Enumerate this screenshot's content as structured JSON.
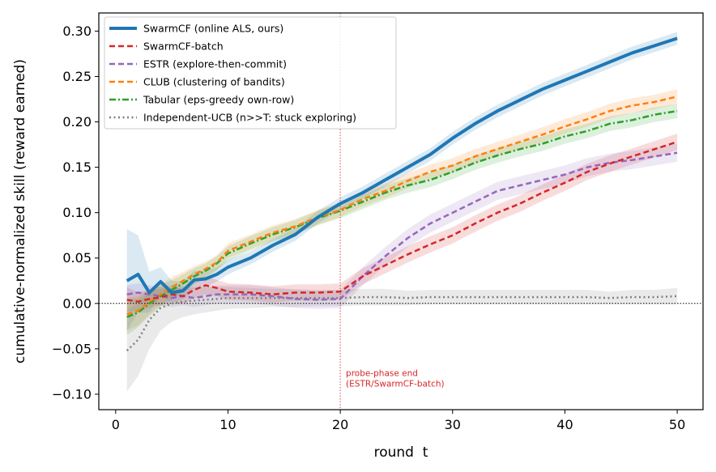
{
  "chart_data": {
    "type": "line",
    "xlabel": "round  t",
    "ylabel": "cumulative-normalized skill (reward earned)",
    "xlim": [
      -1.5,
      52.3
    ],
    "ylim": [
      -0.117,
      0.32
    ],
    "xticks": [
      0,
      10,
      20,
      30,
      40,
      50
    ],
    "yticks": [
      -0.1,
      -0.05,
      0.0,
      0.05,
      0.1,
      0.15,
      0.2,
      0.25,
      0.3
    ],
    "ytick_labels": [
      "−0.10",
      "−0.05",
      "0.00",
      "0.05",
      "0.10",
      "0.15",
      "0.20",
      "0.25",
      "0.30"
    ],
    "zero_line": 0,
    "vline": {
      "x": 20,
      "color": "#d62728"
    },
    "annotation": {
      "lines": [
        "probe-phase end",
        "(ESTR/SwarmCF-batch)"
      ],
      "x": 20.5,
      "y": -0.08,
      "color": "#d62728"
    },
    "legend_position": "upper-left",
    "series": [
      {
        "name": "SwarmCF (online ALS, ours)",
        "color": "#1f77b4",
        "dash": "solid",
        "width": 4,
        "x": [
          1,
          2,
          3,
          4,
          5,
          6,
          7,
          8,
          9,
          10,
          12,
          14,
          16,
          18,
          20,
          22,
          24,
          26,
          28,
          30,
          32,
          34,
          36,
          38,
          40,
          42,
          44,
          46,
          48,
          50
        ],
        "y": [
          0.025,
          0.032,
          0.012,
          0.024,
          0.012,
          0.014,
          0.026,
          0.027,
          0.032,
          0.04,
          0.05,
          0.064,
          0.076,
          0.095,
          0.11,
          0.122,
          0.136,
          0.15,
          0.164,
          0.182,
          0.198,
          0.212,
          0.224,
          0.236,
          0.246,
          0.256,
          0.266,
          0.276,
          0.284,
          0.292
        ],
        "lo": [
          -0.03,
          -0.01,
          -0.01,
          0.008,
          0.0,
          0.005,
          0.016,
          0.018,
          0.024,
          0.032,
          0.043,
          0.057,
          0.069,
          0.088,
          0.103,
          0.115,
          0.129,
          0.143,
          0.157,
          0.175,
          0.191,
          0.205,
          0.217,
          0.229,
          0.239,
          0.249,
          0.259,
          0.269,
          0.277,
          0.285
        ],
        "hi": [
          0.082,
          0.075,
          0.035,
          0.04,
          0.025,
          0.024,
          0.036,
          0.036,
          0.04,
          0.048,
          0.057,
          0.071,
          0.083,
          0.102,
          0.117,
          0.129,
          0.143,
          0.157,
          0.171,
          0.189,
          0.205,
          0.219,
          0.231,
          0.243,
          0.253,
          0.263,
          0.273,
          0.283,
          0.291,
          0.299
        ]
      },
      {
        "name": "SwarmCF-batch",
        "color": "#d62728",
        "dash": "dashed",
        "width": 2.5,
        "x": [
          1,
          2,
          3,
          4,
          5,
          6,
          7,
          8,
          9,
          10,
          12,
          14,
          16,
          18,
          20,
          22,
          24,
          26,
          28,
          30,
          32,
          34,
          36,
          38,
          40,
          42,
          44,
          46,
          48,
          50
        ],
        "y": [
          0.004,
          0.002,
          0.005,
          0.007,
          0.01,
          0.008,
          0.015,
          0.02,
          0.017,
          0.013,
          0.012,
          0.01,
          0.012,
          0.012,
          0.013,
          0.03,
          0.042,
          0.054,
          0.065,
          0.075,
          0.088,
          0.1,
          0.11,
          0.122,
          0.133,
          0.145,
          0.154,
          0.162,
          0.17,
          0.178
        ],
        "lo": [
          -0.01,
          -0.008,
          -0.005,
          -0.002,
          0.002,
          0.0,
          0.006,
          0.01,
          0.008,
          0.004,
          0.003,
          0.001,
          0.003,
          0.003,
          0.004,
          0.021,
          0.033,
          0.045,
          0.056,
          0.066,
          0.079,
          0.091,
          0.101,
          0.113,
          0.124,
          0.136,
          0.145,
          0.153,
          0.161,
          0.169
        ],
        "hi": [
          0.018,
          0.012,
          0.015,
          0.016,
          0.018,
          0.016,
          0.024,
          0.03,
          0.026,
          0.022,
          0.021,
          0.019,
          0.021,
          0.021,
          0.022,
          0.039,
          0.051,
          0.063,
          0.074,
          0.084,
          0.097,
          0.109,
          0.119,
          0.131,
          0.142,
          0.154,
          0.163,
          0.171,
          0.179,
          0.187
        ]
      },
      {
        "name": "ESTR (explore-then-commit)",
        "color": "#9467bd",
        "dash": "dashed",
        "width": 2.5,
        "x": [
          1,
          2,
          3,
          4,
          5,
          6,
          7,
          8,
          9,
          10,
          12,
          14,
          16,
          18,
          20,
          22,
          24,
          26,
          28,
          30,
          32,
          34,
          36,
          38,
          40,
          42,
          44,
          46,
          48,
          50
        ],
        "y": [
          0.01,
          0.012,
          0.01,
          0.008,
          0.006,
          0.008,
          0.006,
          0.008,
          0.01,
          0.01,
          0.01,
          0.008,
          0.005,
          0.004,
          0.005,
          0.03,
          0.052,
          0.072,
          0.088,
          0.1,
          0.112,
          0.124,
          0.13,
          0.136,
          0.142,
          0.15,
          0.155,
          0.158,
          0.162,
          0.166
        ],
        "lo": [
          0.0,
          0.002,
          0.0,
          -0.002,
          -0.004,
          -0.002,
          -0.004,
          -0.002,
          0.0,
          0.0,
          0.0,
          -0.002,
          -0.005,
          -0.006,
          -0.005,
          0.02,
          0.042,
          0.062,
          0.078,
          0.09,
          0.102,
          0.114,
          0.12,
          0.126,
          0.132,
          0.14,
          0.145,
          0.148,
          0.152,
          0.156
        ],
        "hi": [
          0.02,
          0.022,
          0.02,
          0.018,
          0.016,
          0.018,
          0.016,
          0.018,
          0.02,
          0.02,
          0.02,
          0.018,
          0.015,
          0.014,
          0.015,
          0.04,
          0.062,
          0.082,
          0.098,
          0.11,
          0.122,
          0.134,
          0.14,
          0.146,
          0.152,
          0.16,
          0.165,
          0.168,
          0.172,
          0.176
        ]
      },
      {
        "name": "CLUB (clustering of bandits)",
        "color": "#ff7f0e",
        "dash": "dashed",
        "width": 2.5,
        "x": [
          1,
          2,
          3,
          4,
          5,
          6,
          7,
          8,
          9,
          10,
          12,
          14,
          16,
          18,
          20,
          22,
          24,
          26,
          28,
          30,
          32,
          34,
          36,
          38,
          40,
          42,
          44,
          46,
          48,
          50
        ],
        "y": [
          -0.012,
          -0.008,
          0.002,
          0.01,
          0.018,
          0.025,
          0.032,
          0.038,
          0.045,
          0.058,
          0.068,
          0.078,
          0.085,
          0.095,
          0.103,
          0.115,
          0.124,
          0.135,
          0.145,
          0.152,
          0.162,
          0.17,
          0.178,
          0.186,
          0.195,
          0.203,
          0.212,
          0.218,
          0.222,
          0.228
        ],
        "lo": [
          -0.03,
          -0.024,
          -0.012,
          -0.002,
          0.007,
          0.015,
          0.023,
          0.03,
          0.037,
          0.05,
          0.06,
          0.07,
          0.077,
          0.087,
          0.095,
          0.107,
          0.116,
          0.127,
          0.137,
          0.144,
          0.154,
          0.162,
          0.17,
          0.178,
          0.187,
          0.195,
          0.204,
          0.21,
          0.214,
          0.22
        ],
        "hi": [
          0.006,
          0.008,
          0.016,
          0.022,
          0.029,
          0.035,
          0.041,
          0.046,
          0.053,
          0.066,
          0.076,
          0.086,
          0.093,
          0.103,
          0.111,
          0.123,
          0.132,
          0.143,
          0.153,
          0.16,
          0.17,
          0.178,
          0.186,
          0.194,
          0.203,
          0.211,
          0.22,
          0.226,
          0.23,
          0.236
        ]
      },
      {
        "name": "Tabular (eps-greedy own-row)",
        "color": "#2ca02c",
        "dash": "dashdot",
        "width": 2.5,
        "x": [
          1,
          2,
          3,
          4,
          5,
          6,
          7,
          8,
          9,
          10,
          12,
          14,
          16,
          18,
          20,
          22,
          24,
          26,
          28,
          30,
          32,
          34,
          36,
          38,
          40,
          42,
          44,
          46,
          48,
          50
        ],
        "y": [
          -0.015,
          -0.01,
          0.0,
          0.008,
          0.015,
          0.022,
          0.03,
          0.036,
          0.044,
          0.055,
          0.066,
          0.076,
          0.084,
          0.094,
          0.102,
          0.112,
          0.122,
          0.13,
          0.136,
          0.145,
          0.155,
          0.163,
          0.17,
          0.176,
          0.184,
          0.19,
          0.198,
          0.202,
          0.208,
          0.212
        ],
        "lo": [
          -0.035,
          -0.026,
          -0.014,
          -0.004,
          0.004,
          0.012,
          0.021,
          0.028,
          0.036,
          0.047,
          0.058,
          0.068,
          0.076,
          0.086,
          0.094,
          0.104,
          0.114,
          0.122,
          0.128,
          0.137,
          0.147,
          0.155,
          0.162,
          0.168,
          0.176,
          0.182,
          0.19,
          0.194,
          0.2,
          0.204
        ],
        "hi": [
          0.005,
          0.006,
          0.014,
          0.02,
          0.026,
          0.032,
          0.039,
          0.044,
          0.052,
          0.063,
          0.074,
          0.084,
          0.092,
          0.102,
          0.11,
          0.12,
          0.13,
          0.138,
          0.144,
          0.153,
          0.163,
          0.171,
          0.178,
          0.184,
          0.192,
          0.198,
          0.206,
          0.21,
          0.216,
          0.22
        ]
      },
      {
        "name": "Independent-UCB (n>>T: stuck exploring)",
        "color": "#7f7f7f",
        "dash": "dotted",
        "width": 2.5,
        "x": [
          1,
          2,
          3,
          4,
          5,
          6,
          7,
          8,
          9,
          10,
          12,
          14,
          16,
          18,
          20,
          22,
          24,
          26,
          28,
          30,
          32,
          34,
          36,
          38,
          40,
          42,
          44,
          46,
          48,
          50
        ],
        "y": [
          -0.052,
          -0.04,
          -0.018,
          -0.005,
          0.0,
          0.002,
          0.003,
          0.004,
          0.005,
          0.006,
          0.006,
          0.006,
          0.006,
          0.006,
          0.006,
          0.007,
          0.007,
          0.006,
          0.007,
          0.007,
          0.007,
          0.007,
          0.007,
          0.007,
          0.007,
          0.007,
          0.006,
          0.007,
          0.007,
          0.008
        ],
        "lo": [
          -0.097,
          -0.08,
          -0.05,
          -0.03,
          -0.02,
          -0.015,
          -0.012,
          -0.01,
          -0.008,
          -0.006,
          -0.005,
          -0.004,
          -0.004,
          -0.003,
          -0.003,
          -0.002,
          -0.002,
          -0.002,
          -0.001,
          -0.001,
          -0.001,
          -0.001,
          -0.001,
          -0.001,
          -0.001,
          -0.001,
          -0.001,
          -0.001,
          -0.001,
          -0.001
        ],
        "hi": [
          -0.007,
          0.0,
          0.014,
          0.02,
          0.02,
          0.019,
          0.018,
          0.018,
          0.018,
          0.018,
          0.017,
          0.016,
          0.016,
          0.015,
          0.015,
          0.016,
          0.016,
          0.014,
          0.015,
          0.015,
          0.015,
          0.015,
          0.015,
          0.015,
          0.015,
          0.015,
          0.013,
          0.015,
          0.015,
          0.017
        ]
      }
    ]
  }
}
